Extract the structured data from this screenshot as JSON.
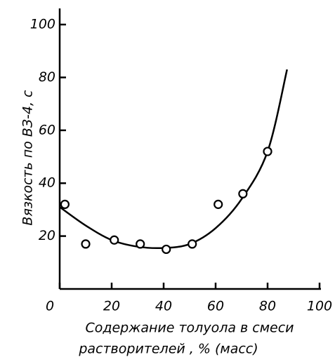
{
  "chart_data": {
    "type": "scatter",
    "ylabel": "Вязкость по ВЗ-4, с",
    "xlabel": [
      "Содержание толуола в смеси",
      "растворителей , % (масс)"
    ],
    "points": {
      "x": [
        2,
        10,
        21,
        31,
        41,
        51,
        61,
        70.5,
        80
      ],
      "y": [
        32,
        17,
        18.5,
        17,
        15,
        17,
        32,
        36,
        52
      ],
      "color": "#000"
    },
    "curve": {
      "x": [
        0,
        10,
        20,
        30,
        40,
        50,
        60,
        70,
        80,
        87.5
      ],
      "y": [
        31,
        24,
        18.5,
        16,
        15.5,
        17,
        23,
        34,
        52,
        83
      ],
      "color": "#000"
    },
    "xlim": [
      0,
      100
    ],
    "xticks": [
      0,
      20,
      40,
      60,
      80,
      100
    ],
    "ylim": [
      0,
      100
    ],
    "yticks": [
      20,
      40,
      60,
      80,
      100
    ],
    "grid": false
  }
}
